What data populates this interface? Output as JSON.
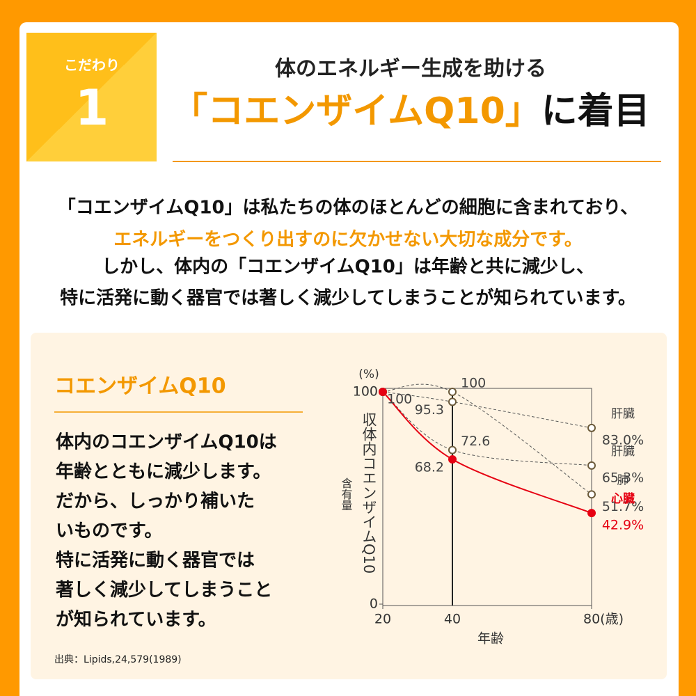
{
  "badge": {
    "label": "こだわり",
    "number": "1"
  },
  "header": {
    "subtitle": "体のエネルギー生成を助ける",
    "title_highlight": "「コエンザイムQ10」",
    "title_rest": "に着目"
  },
  "intro": {
    "lines": [
      "「コエンザイムQ10」は私たちの体のほとんどの細胞に含まれており、",
      "エネルギーをつくり出すのに欠かせない大切な成分です。",
      "しかし、体内の「コエンザイムQ10」は年齢と共に減少し、",
      "特に活発に動く器官では著しく減少してしまうことが知られています。"
    ]
  },
  "panel": {
    "heading": "コエンザイムQ10",
    "body_lines": [
      "体内のコエンザイムQ10は",
      "年齢とともに減少します。",
      "だから、しっかり補いた",
      "いものです。",
      "特に活発に動く器官では",
      "著しく減少してしまうこと",
      "が知られています。"
    ],
    "source": "出典：Lipids,24,579(1989)"
  },
  "chart_data": {
    "type": "line",
    "y_unit": "(%)",
    "y_label": "収体内コエンザイムQ10",
    "y_label_sub": "含有量",
    "x_label": "年齢",
    "x": [
      20,
      40,
      80
    ],
    "xlim": [
      20,
      80
    ],
    "xticks": [
      20,
      40,
      {
        "value": 80,
        "label": "80(歳)"
      }
    ],
    "ylim": [
      0,
      100
    ],
    "yticks": [
      0,
      100
    ],
    "grid": false,
    "series": [
      {
        "name": "肝臓",
        "color": "#555555",
        "values": [
          100,
          95.3,
          83.0
        ],
        "value_labels": [
          null,
          "95.3",
          "83.0%"
        ]
      },
      {
        "name": "肝臓",
        "color": "#555555",
        "values": [
          100,
          72.6,
          65.3
        ],
        "value_labels": [
          null,
          "72.6",
          "65.3%"
        ]
      },
      {
        "name": "肺",
        "color": "#555555",
        "values": [
          100,
          100,
          51.7
        ],
        "value_labels": [
          null,
          "100",
          "51.7%"
        ]
      },
      {
        "name": "心臓",
        "color": "#e60012",
        "values": [
          100,
          68.2,
          42.9
        ],
        "value_labels": [
          "100",
          "68.2",
          "42.9%"
        ]
      }
    ]
  }
}
